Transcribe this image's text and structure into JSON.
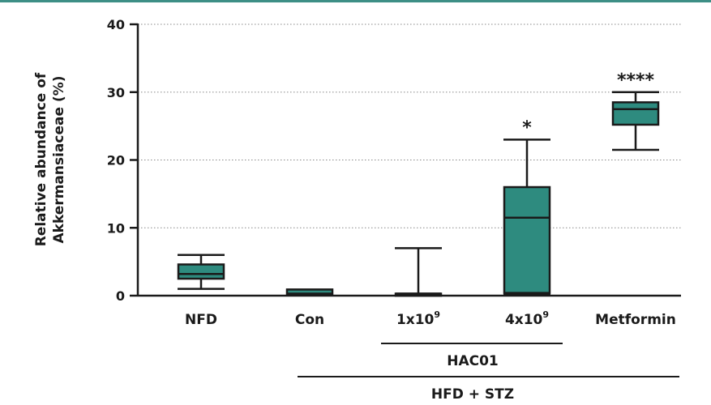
{
  "colors": {
    "box_fill": "#2e8b7f",
    "stroke": "#1a1a1a",
    "grid": "#888888",
    "top_rule": "#3d8f86"
  },
  "chart_data": {
    "type": "box",
    "ylabel_line1": "Relative abundance of",
    "ylabel_line2": "Akkermansiaceae (%)",
    "ylim": [
      0,
      40
    ],
    "yticks": [
      "0",
      "10",
      "20",
      "30",
      "40"
    ],
    "ytick_values": [
      0,
      10,
      20,
      30,
      40
    ],
    "grid": "horizontal dotted at 10, 20, 30, 40",
    "categories": [
      {
        "label": "NFD"
      },
      {
        "label": "Con"
      },
      {
        "label_base": "1x10",
        "label_sup": "9"
      },
      {
        "label_base": "4x10",
        "label_sup": "9"
      },
      {
        "label": "Metformin"
      }
    ],
    "boxes": [
      {
        "min": 1.0,
        "q1": 2.5,
        "median": 3.2,
        "q3": 4.6,
        "max": 6.0,
        "sig": ""
      },
      {
        "min": 0.2,
        "q1": 0.2,
        "median": 0.3,
        "q3": 0.9,
        "max": 0.9,
        "sig": ""
      },
      {
        "min": 0.0,
        "q1": 0.0,
        "median": 0.3,
        "q3": 0.3,
        "max": 7.0,
        "sig": ""
      },
      {
        "min": 0.2,
        "q1": 0.4,
        "median": 11.5,
        "q3": 16.0,
        "max": 23.0,
        "sig": "*"
      },
      {
        "min": 21.5,
        "q1": 25.2,
        "median": 27.5,
        "q3": 28.5,
        "max": 30.0,
        "sig": "****"
      }
    ],
    "groups": [
      {
        "label": "HAC01",
        "from": 2,
        "to": 3
      },
      {
        "label": "HFD + STZ",
        "from": 1,
        "to": 4
      }
    ]
  }
}
